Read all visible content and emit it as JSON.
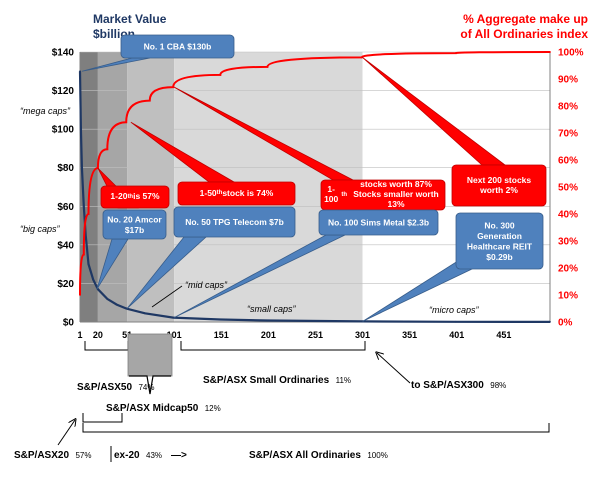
{
  "chart_data": {
    "type": "line",
    "title_left": [
      "Market Value",
      "$billion"
    ],
    "title_right": [
      "% Aggregate make up",
      "of All Ordinaries index"
    ],
    "x_ticks": [
      "1",
      "20",
      "51",
      "101",
      "151",
      "201",
      "251",
      "301",
      "351",
      "401",
      "451"
    ],
    "y_left_ticks": [
      "$0",
      "$20",
      "$40",
      "$60",
      "$80",
      "$100",
      "$120",
      "$140"
    ],
    "y_left_range": [
      0,
      140
    ],
    "y_right_ticks": [
      "0%",
      "10%",
      "20%",
      "30%",
      "40%",
      "50%",
      "60%",
      "70%",
      "80%",
      "90%",
      "100%"
    ],
    "y_right_range": [
      0,
      100
    ],
    "x_range": [
      1,
      500
    ],
    "series": [
      {
        "axis": "left",
        "color": "#1f3864",
        "x": [
          1,
          2,
          3,
          5,
          7,
          10,
          15,
          20,
          30,
          40,
          50,
          70,
          100,
          150,
          200,
          300,
          400,
          500
        ],
        "y": [
          130,
          100,
          80,
          60,
          45,
          30,
          22,
          17,
          12,
          9,
          7,
          4.5,
          2.3,
          1.3,
          0.8,
          0.29,
          0.12,
          0.05
        ]
      },
      {
        "axis": "right",
        "color": "#ff0000",
        "x": [
          1,
          5,
          10,
          20,
          30,
          50,
          75,
          100,
          150,
          200,
          300,
          400,
          500
        ],
        "y": [
          10,
          25,
          40,
          57,
          64,
          74,
          82,
          87,
          91.5,
          94.5,
          98,
          99.6,
          100
        ]
      }
    ],
    "side_labels": [
      "“mega caps”",
      "“big caps”"
    ],
    "bands": [
      {
        "from": 1,
        "to": 20,
        "shade": "#7f7f7f"
      },
      {
        "from": 20,
        "to": 51,
        "shade": "#a6a6a6"
      },
      {
        "from": 51,
        "to": 101,
        "shade": "#bfbfbf"
      },
      {
        "from": 101,
        "to": 301,
        "shade": "#d9d9d9"
      },
      {
        "from": 301,
        "to": 500,
        "shade": "#ffffff"
      }
    ],
    "segment_labels": [
      {
        "text": "“mid caps”"
      },
      {
        "text": "“small caps”"
      },
      {
        "text": "“micro caps”"
      }
    ],
    "blue_callouts": [
      {
        "lines": [
          "No. 1 CBA $130b"
        ]
      },
      {
        "lines": [
          "No. 20 Amcor",
          "$17b"
        ]
      },
      {
        "lines": [
          "No. 50 TPG Telecom $7b"
        ]
      },
      {
        "lines": [
          "No. 100 Sims Metal $2.3b"
        ]
      },
      {
        "lines": [
          "No. 300",
          "Generation",
          "Healthcare REIT",
          "$0.29b"
        ]
      }
    ],
    "red_callouts": [
      {
        "html": "1-20<sup>th</sup> is 57%"
      },
      {
        "html": "1-50<sup>th</sup> stock is 74%"
      },
      {
        "html": "1-100<sup>th</sup> stocks worth 87%<br>Stocks  smaller worth 13%"
      },
      {
        "html": "Next 200 stocks<br>worth 2%"
      }
    ],
    "index_labels": [
      {
        "name": "S&P/ASX50",
        "pct": "74%"
      },
      {
        "name": "S&P/ASX Small Ordinaries",
        "pct": "11%"
      },
      {
        "name": "to S&P/ASX300",
        "pct": "98%"
      },
      {
        "name": "S&P/ASX Midcap50",
        "pct": "12%"
      },
      {
        "name": "S&P/ASX20",
        "pct": "57%"
      },
      {
        "name": "ex-20",
        "pct": "43%"
      },
      {
        "name": "S&P/ASX All Ordinaries",
        "pct": "100%"
      }
    ],
    "arrow_glyph": "—>"
  }
}
